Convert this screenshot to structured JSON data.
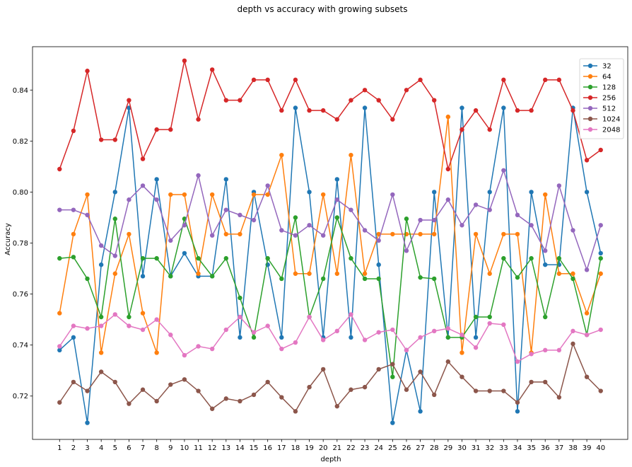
{
  "chart_data": {
    "type": "line",
    "title": "depth vs accuracy with growing subsets",
    "xlabel": "depth",
    "ylabel": "Accuracy",
    "x": [
      1,
      2,
      3,
      4,
      5,
      6,
      7,
      8,
      9,
      10,
      11,
      12,
      13,
      14,
      15,
      16,
      17,
      18,
      19,
      20,
      21,
      22,
      23,
      24,
      25,
      26,
      27,
      28,
      29,
      30,
      31,
      32,
      33,
      34,
      35,
      36,
      37,
      38,
      39,
      40
    ],
    "xticks": [
      "1",
      "2",
      "3",
      "4",
      "5",
      "6",
      "7",
      "8",
      "9",
      "10",
      "11",
      "12",
      "13",
      "14",
      "15",
      "16",
      "17",
      "18",
      "19",
      "20",
      "21",
      "22",
      "23",
      "24",
      "25",
      "26",
      "27",
      "28",
      "29",
      "30",
      "31",
      "32",
      "33",
      "34",
      "35",
      "36",
      "37",
      "38",
      "39",
      "40"
    ],
    "yticks": [
      "0.72",
      "0.74",
      "0.76",
      "0.78",
      "0.80",
      "0.82",
      "0.84"
    ],
    "ytick_values": [
      0.72,
      0.74,
      0.76,
      0.78,
      0.8,
      0.82,
      0.84
    ],
    "xlim": [
      -0.95,
      41.95
    ],
    "ylim": [
      0.703,
      0.857
    ],
    "legend_position": "upper-right",
    "grid": false,
    "series": [
      {
        "name": "32",
        "color": "#1f77b4",
        "values": [
          0.738,
          0.743,
          0.7095,
          0.7715,
          0.8,
          0.833,
          0.767,
          0.805,
          0.767,
          0.776,
          0.767,
          0.767,
          0.805,
          0.743,
          0.8,
          0.7715,
          0.743,
          0.833,
          0.8,
          0.743,
          0.805,
          0.743,
          0.833,
          0.7715,
          0.7095,
          0.738,
          0.714,
          0.8,
          0.743,
          0.833,
          0.743,
          0.8,
          0.833,
          0.714,
          0.8,
          0.7715,
          0.7715,
          0.833,
          0.8,
          0.776
        ]
      },
      {
        "name": "64",
        "color": "#ff7f0e",
        "values": [
          0.7525,
          0.7835,
          0.799,
          0.737,
          0.768,
          0.7835,
          0.7525,
          0.737,
          0.799,
          0.799,
          0.768,
          0.799,
          0.7835,
          0.7835,
          0.799,
          0.799,
          0.8145,
          0.768,
          0.768,
          0.799,
          0.768,
          0.8145,
          0.768,
          0.7835,
          0.7835,
          0.7835,
          0.7835,
          0.7835,
          0.8295,
          0.737,
          0.7835,
          0.768,
          0.7835,
          0.7835,
          0.737,
          0.799,
          0.768,
          0.768,
          0.7525,
          0.768
        ]
      },
      {
        "name": "128",
        "color": "#2ca02c",
        "values": [
          0.774,
          0.7745,
          0.766,
          0.751,
          0.7895,
          0.751,
          0.774,
          0.774,
          0.767,
          0.7895,
          0.774,
          0.767,
          0.774,
          0.7585,
          0.743,
          0.774,
          0.766,
          0.79,
          0.751,
          0.766,
          0.79,
          0.774,
          0.766,
          0.766,
          0.7275,
          0.7895,
          0.7665,
          0.766,
          0.743,
          0.743,
          0.751,
          0.751,
          0.774,
          0.7665,
          0.774,
          0.751,
          0.774,
          0.766,
          0.744,
          0.774
        ]
      },
      {
        "name": "256",
        "color": "#d62728",
        "values": [
          0.809,
          0.824,
          0.8475,
          0.8205,
          0.8205,
          0.836,
          0.813,
          0.8245,
          0.8245,
          0.8515,
          0.8285,
          0.848,
          0.836,
          0.836,
          0.844,
          0.844,
          0.832,
          0.844,
          0.832,
          0.832,
          0.8285,
          0.836,
          0.84,
          0.836,
          0.8285,
          0.84,
          0.844,
          0.836,
          0.809,
          0.8245,
          0.832,
          0.8245,
          0.844,
          0.832,
          0.832,
          0.844,
          0.844,
          0.832,
          0.8125,
          0.8165
        ]
      },
      {
        "name": "512",
        "color": "#9467bd",
        "values": [
          0.793,
          0.793,
          0.791,
          0.779,
          0.775,
          0.797,
          0.8025,
          0.797,
          0.781,
          0.787,
          0.8065,
          0.783,
          0.793,
          0.791,
          0.789,
          0.8025,
          0.785,
          0.783,
          0.787,
          0.783,
          0.797,
          0.793,
          0.785,
          0.781,
          0.799,
          0.777,
          0.789,
          0.789,
          0.797,
          0.787,
          0.795,
          0.793,
          0.8085,
          0.791,
          0.787,
          0.777,
          0.8025,
          0.785,
          0.7695,
          0.787
        ]
      },
      {
        "name": "1024",
        "color": "#8c564b",
        "values": [
          0.7175,
          0.7255,
          0.722,
          0.7295,
          0.7255,
          0.717,
          0.7225,
          0.718,
          0.7245,
          0.7265,
          0.722,
          0.715,
          0.719,
          0.718,
          0.7205,
          0.7255,
          0.7195,
          0.714,
          0.7235,
          0.7305,
          0.716,
          0.7225,
          0.7235,
          0.7305,
          0.7325,
          0.7225,
          0.7295,
          0.7205,
          0.7335,
          0.7275,
          0.722,
          0.722,
          0.722,
          0.7175,
          0.7255,
          0.7255,
          0.7195,
          0.7405,
          0.7275,
          0.722
        ]
      },
      {
        "name": "2048",
        "color": "#e377c2",
        "values": [
          0.7395,
          0.7475,
          0.7465,
          0.7475,
          0.752,
          0.7475,
          0.746,
          0.75,
          0.744,
          0.736,
          0.7395,
          0.7385,
          0.746,
          0.751,
          0.745,
          0.7475,
          0.7385,
          0.741,
          0.751,
          0.742,
          0.7455,
          0.752,
          0.742,
          0.745,
          0.746,
          0.738,
          0.743,
          0.7455,
          0.7465,
          0.744,
          0.739,
          0.7485,
          0.748,
          0.7335,
          0.7365,
          0.738,
          0.738,
          0.7455,
          0.744,
          0.746
        ]
      }
    ]
  }
}
